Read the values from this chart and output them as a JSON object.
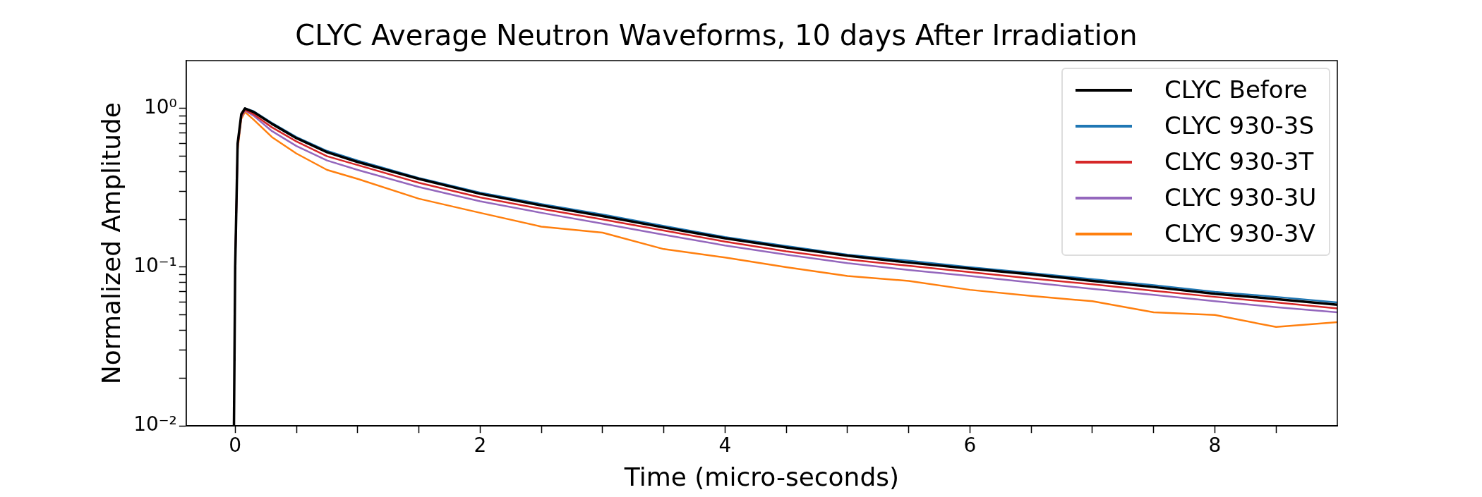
{
  "chart_data": {
    "type": "line",
    "title": "CLYC Average Neutron Waveforms, 10 days After Irradiation",
    "xlabel": "Time (micro-seconds)",
    "ylabel": "Normalized Amplitude",
    "x": [
      -0.01,
      0,
      0.02,
      0.05,
      0.08,
      0.15,
      0.3,
      0.5,
      0.75,
      1,
      1.5,
      2,
      2.5,
      3,
      3.5,
      4,
      4.5,
      5,
      5.5,
      6,
      6.5,
      7,
      7.5,
      8,
      8.5,
      9
    ],
    "series": [
      {
        "name": "CLYC Before",
        "color": "#000000",
        "values": [
          0.01,
          0.1,
          0.6,
          0.92,
          1.0,
          0.95,
          0.8,
          0.65,
          0.53,
          0.46,
          0.36,
          0.29,
          0.245,
          0.21,
          0.178,
          0.152,
          0.133,
          0.118,
          0.107,
          0.098,
          0.09,
          0.082,
          0.075,
          0.068,
          0.063,
          0.058
        ]
      },
      {
        "name": "CLYC 930-3S",
        "color": "#1f77b4",
        "values": [
          null,
          null,
          null,
          0.92,
          1.0,
          0.96,
          0.81,
          0.66,
          0.54,
          0.47,
          0.365,
          0.295,
          0.25,
          0.215,
          0.182,
          0.155,
          0.136,
          0.12,
          0.11,
          0.1,
          0.092,
          0.084,
          0.077,
          0.07,
          0.065,
          0.06
        ]
      },
      {
        "name": "CLYC 930-3T",
        "color": "#d62728",
        "values": [
          null,
          0.1,
          0.58,
          0.9,
          0.98,
          0.92,
          0.76,
          0.62,
          0.5,
          0.44,
          0.34,
          0.275,
          0.233,
          0.2,
          0.17,
          0.145,
          0.126,
          0.112,
          0.102,
          0.093,
          0.085,
          0.078,
          0.071,
          0.065,
          0.06,
          0.055
        ]
      },
      {
        "name": "CLYC 930-3U",
        "color": "#9467bd",
        "values": [
          null,
          0.1,
          0.57,
          0.88,
          0.97,
          0.9,
          0.72,
          0.58,
          0.47,
          0.41,
          0.32,
          0.26,
          0.22,
          0.188,
          0.16,
          0.137,
          0.12,
          0.106,
          0.096,
          0.088,
          0.08,
          0.073,
          0.067,
          0.061,
          0.056,
          0.052
        ]
      },
      {
        "name": "CLYC 930-3V",
        "color": "#ff7f0e",
        "values": [
          null,
          null,
          0.55,
          0.86,
          0.95,
          0.85,
          0.66,
          0.52,
          0.41,
          0.36,
          0.27,
          0.22,
          0.18,
          0.165,
          0.13,
          0.115,
          0.1,
          0.088,
          0.082,
          0.072,
          0.066,
          0.061,
          0.052,
          0.05,
          0.042,
          0.045
        ]
      }
    ],
    "xlim": [
      -0.4,
      9
    ],
    "xticks": [
      0,
      {
        "value": 0.5,
        "label": null
      },
      {
        "value": 1,
        "label": null
      },
      {
        "value": 1.5,
        "label": null
      },
      2,
      {
        "value": 2.5,
        "label": null
      },
      {
        "value": 3,
        "label": null
      },
      {
        "value": 3.5,
        "label": null
      },
      4,
      {
        "value": 4.5,
        "label": null
      },
      {
        "value": 5,
        "label": null
      },
      {
        "value": 5.5,
        "label": null
      },
      6,
      {
        "value": 6.5,
        "label": null
      },
      {
        "value": 7,
        "label": null
      },
      {
        "value": 7.5,
        "label": null
      },
      8,
      {
        "value": 8.5,
        "label": null
      }
    ],
    "ylim": [
      0.01,
      2
    ],
    "yticks": [
      {
        "value": 0.01,
        "label": "10⁻²"
      },
      {
        "value": 0.02,
        "label": null
      },
      {
        "value": 0.03,
        "label": null
      },
      {
        "value": 0.04,
        "label": null
      },
      {
        "value": 0.05,
        "label": null
      },
      {
        "value": 0.06,
        "label": null
      },
      {
        "value": 0.07,
        "label": null
      },
      {
        "value": 0.08,
        "label": null
      },
      {
        "value": 0.09,
        "label": null
      },
      {
        "value": 0.1,
        "label": "10⁻¹"
      },
      {
        "value": 0.2,
        "label": null
      },
      {
        "value": 0.3,
        "label": null
      },
      {
        "value": 0.4,
        "label": null
      },
      {
        "value": 0.5,
        "label": null
      },
      {
        "value": 0.6,
        "label": null
      },
      {
        "value": 0.7,
        "label": null
      },
      {
        "value": 0.8,
        "label": null
      },
      {
        "value": 0.9,
        "label": null
      },
      {
        "value": 1,
        "label": "10⁰"
      }
    ],
    "log": "y",
    "grid": false,
    "legend": "top right",
    "marker": "none",
    "line_style": "solid"
  }
}
